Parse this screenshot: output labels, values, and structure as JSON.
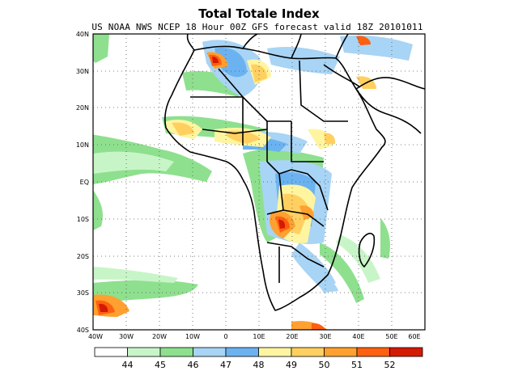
{
  "title": "Total Totale Index",
  "subtitle": "US NOAA NWS NCEP 18 Hour 00Z GFS forecast valid 18Z 20101011",
  "lat_labels": [
    "40N",
    "30N",
    "20N",
    "10N",
    "EQ",
    "10S",
    "20S",
    "30S",
    "40S"
  ],
  "lon_labels": [
    "40W",
    "30W",
    "20W",
    "10W",
    "0",
    "10E",
    "20E",
    "30E",
    "40E",
    "50E",
    "60E"
  ],
  "colorbar": {
    "labels": [
      "44",
      "45",
      "46",
      "47",
      "48",
      "49",
      "50",
      "51",
      "52"
    ],
    "colors": [
      "#ffffff",
      "#c8f5c8",
      "#8ee08e",
      "#a8d4f5",
      "#6bb2f0",
      "#fff5a0",
      "#ffd060",
      "#ffa030",
      "#ff6010",
      "#d41a00"
    ]
  }
}
